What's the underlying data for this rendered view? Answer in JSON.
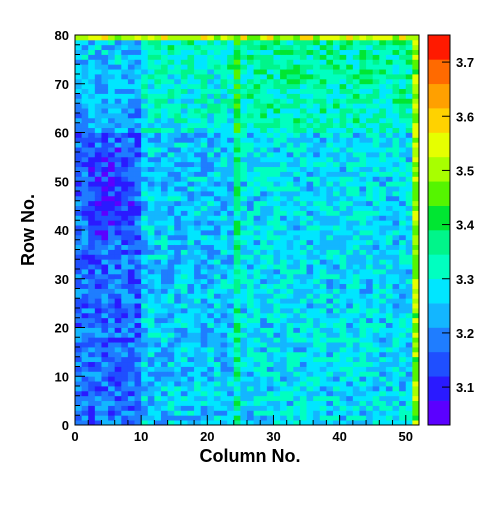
{
  "chart_data": {
    "type": "heatmap",
    "title": "",
    "xlabel": "Column No.",
    "ylabel": "Row No.",
    "x_range": [
      0,
      52
    ],
    "y_range": [
      0,
      80
    ],
    "z_range": [
      3.03,
      3.75
    ],
    "x_ticks": [
      0,
      10,
      20,
      30,
      40,
      50
    ],
    "x_tick_labels": [
      "0",
      "10",
      "20",
      "30",
      "40",
      "50"
    ],
    "y_ticks": [
      0,
      10,
      20,
      30,
      40,
      50,
      60,
      70,
      80
    ],
    "y_tick_labels": [
      "0",
      "10",
      "20",
      "30",
      "40",
      "50",
      "60",
      "70",
      "80"
    ],
    "colorbar_ticks": [
      3.1,
      3.2,
      3.3,
      3.4,
      3.5,
      3.6,
      3.7
    ],
    "colorbar_tick_labels": [
      "3.1",
      "3.2",
      "3.3",
      "3.4",
      "3.5",
      "3.6",
      "3.7"
    ],
    "n_columns": 52,
    "n_rows": 80,
    "grid": false,
    "palette": [
      "#5b00ff",
      "#2a1aff",
      "#1f4fff",
      "#1f7dff",
      "#13b6ff",
      "#00e6ff",
      "#00ffc0",
      "#00f58a",
      "#00e632",
      "#55f500",
      "#a8ff00",
      "#e6ff00",
      "#ffd200",
      "#ffa000",
      "#ff6a00",
      "#ff1a00"
    ],
    "value_regions": [
      {
        "columns": [
          0,
          9
        ],
        "rows": [
          0,
          80
        ],
        "typical_value": 3.16,
        "note": "columns 0-9 mostly blue, darkest around rows 40-55"
      },
      {
        "columns": [
          10,
          23
        ],
        "rows": [
          0,
          80
        ],
        "typical_value": 3.25
      },
      {
        "columns": [
          24,
          24
        ],
        "rows": [
          0,
          80
        ],
        "typical_value": 3.35,
        "note": "bright green vertical stripe"
      },
      {
        "columns": [
          25,
          51
        ],
        "rows": [
          0,
          80
        ],
        "typical_value": 3.27
      },
      {
        "columns": [
          0,
          51
        ],
        "rows": [
          60,
          80
        ],
        "typical_value": 3.32,
        "note": "upper rows greener"
      },
      {
        "columns": [
          51,
          51
        ],
        "rows": [
          0,
          80
        ],
        "typical_value": 3.52,
        "note": "right edge yellow-green"
      },
      {
        "columns": [
          0,
          51
        ],
        "rows": [
          79,
          80
        ],
        "typical_value": 3.5,
        "note": "top edge yellow-green"
      }
    ]
  }
}
